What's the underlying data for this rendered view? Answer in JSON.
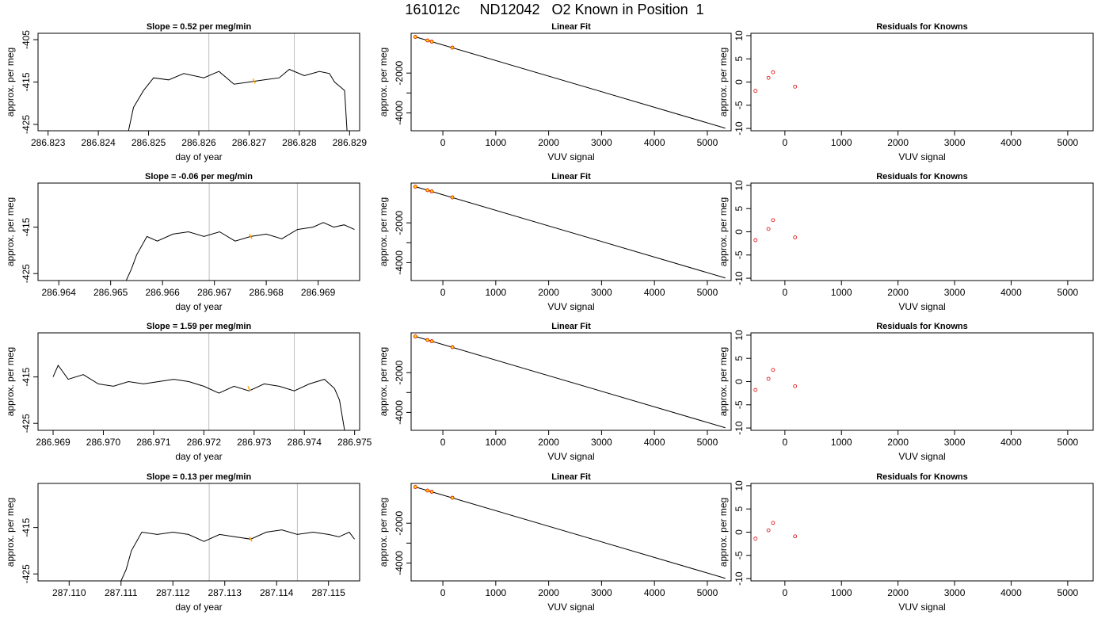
{
  "figure": {
    "title": "161012c     ND12042   O2 Known in Position  1"
  },
  "chart_data": [
    {
      "type": "line",
      "row": 1,
      "panel": "time-series",
      "title": "Slope =  0.52  per meg/min",
      "xlabel": "day of year",
      "ylabel": "approx. per meg",
      "xlim": [
        286.8228,
        286.8292
      ],
      "ylim": [
        -426.5,
        -403.5
      ],
      "xticks": [
        286.823,
        286.824,
        286.825,
        286.826,
        286.827,
        286.828,
        286.829
      ],
      "xtick_labels": [
        "286.823",
        "286.824",
        "286.825",
        "286.826",
        "286.827",
        "286.828",
        "286.829"
      ],
      "yticks": [
        -425,
        -415,
        -405
      ],
      "ytick_labels": [
        "-425",
        "-415",
        "-405"
      ],
      "vlines": [
        286.8262,
        286.8279
      ],
      "highlight": {
        "x": 286.8271,
        "y": -414.8
      },
      "x": [
        286.8246,
        286.8247,
        286.8249,
        286.8251,
        286.8254,
        286.8257,
        286.8261,
        286.8264,
        286.8267,
        286.827,
        286.8273,
        286.8276,
        286.8278,
        286.8281,
        286.8284,
        286.8286,
        286.8287,
        286.8288,
        286.8289,
        286.82895
      ],
      "y": [
        -426.5,
        -421.0,
        -417.0,
        -414.0,
        -414.5,
        -413.0,
        -414.0,
        -412.5,
        -415.5,
        -415.0,
        -414.5,
        -414.0,
        -412.0,
        -413.5,
        -412.5,
        -413.0,
        -415.0,
        -416.0,
        -417.0,
        -426.5
      ]
    },
    {
      "type": "line",
      "row": 1,
      "panel": "linear-fit",
      "title": "Linear Fit",
      "xlabel": "VUV signal",
      "ylabel": "approx. per meg",
      "xlim": [
        -600,
        5450
      ],
      "ylim": [
        -4900,
        0
      ],
      "xticks": [
        0,
        1000,
        2000,
        3000,
        4000,
        5000
      ],
      "xtick_labels": [
        "0",
        "1000",
        "2000",
        "3000",
        "4000",
        "5000"
      ],
      "yticks": [
        -4000,
        -3000,
        -2000
      ],
      "ytick_labels": [
        "-4000",
        "",
        "-2000"
      ],
      "fit_line": {
        "x": [
          -520,
          5340
        ],
        "y": [
          -180,
          -4770
        ]
      },
      "points": {
        "x": [
          -520,
          -290,
          -210,
          180
        ],
        "y": [
          -180,
          -360,
          -420,
          -720
        ]
      }
    },
    {
      "type": "scatter",
      "row": 1,
      "panel": "residuals",
      "title": "Residuals for Knowns",
      "xlabel": "VUV signal",
      "ylabel": "approx. per meg",
      "xlim": [
        -600,
        5450
      ],
      "ylim": [
        -10.5,
        10.5
      ],
      "xticks": [
        0,
        1000,
        2000,
        3000,
        4000,
        5000
      ],
      "xtick_labels": [
        "0",
        "1000",
        "2000",
        "3000",
        "4000",
        "5000"
      ],
      "yticks": [
        -10,
        -5,
        0,
        5,
        10
      ],
      "ytick_labels": [
        "-10",
        "-5",
        "0",
        "5",
        "10"
      ],
      "x": [
        -520,
        -290,
        -210,
        180
      ],
      "y": [
        -1.9,
        0.9,
        2.1,
        -1.0
      ]
    },
    {
      "type": "line",
      "row": 2,
      "panel": "time-series",
      "title": "Slope =  -0.06  per meg/min",
      "xlabel": "day of year",
      "ylabel": "approx. per meg",
      "xlim": [
        286.9636,
        286.9698
      ],
      "ylim": [
        -426.5,
        -405.5
      ],
      "xticks": [
        286.964,
        286.965,
        286.966,
        286.967,
        286.968,
        286.969
      ],
      "xtick_labels": [
        "286.964",
        "286.965",
        "286.966",
        "286.967",
        "286.968",
        "286.969"
      ],
      "yticks": [
        -425,
        -415
      ],
      "ytick_labels": [
        "-425",
        "-415"
      ],
      "vlines": [
        286.9669,
        286.9686
      ],
      "highlight": {
        "x": 286.9677,
        "y": -417.0
      },
      "x": [
        286.9653,
        286.9654,
        286.9655,
        286.9657,
        286.9659,
        286.9662,
        286.9665,
        286.9668,
        286.9671,
        286.9674,
        286.9677,
        286.968,
        286.9683,
        286.9686,
        286.9689,
        286.9691,
        286.9693,
        286.9695,
        286.9697
      ],
      "y": [
        -426.5,
        -424.0,
        -421.0,
        -417.0,
        -418.0,
        -416.5,
        -416.0,
        -417.0,
        -416.0,
        -418.0,
        -417.0,
        -416.5,
        -417.5,
        -415.5,
        -415.0,
        -414.0,
        -415.0,
        -414.5,
        -415.5
      ]
    },
    {
      "type": "line",
      "row": 2,
      "panel": "linear-fit",
      "title": "Linear Fit",
      "xlabel": "VUV signal",
      "ylabel": "approx. per meg",
      "xlim": [
        -600,
        5450
      ],
      "ylim": [
        -4900,
        0
      ],
      "xticks": [
        0,
        1000,
        2000,
        3000,
        4000,
        5000
      ],
      "xtick_labels": [
        "0",
        "1000",
        "2000",
        "3000",
        "4000",
        "5000"
      ],
      "yticks": [
        -4000,
        -3000,
        -2000
      ],
      "ytick_labels": [
        "-4000",
        "",
        "-2000"
      ],
      "fit_line": {
        "x": [
          -520,
          5340
        ],
        "y": [
          -180,
          -4770
        ]
      },
      "points": {
        "x": [
          -520,
          -290,
          -210,
          180
        ],
        "y": [
          -180,
          -360,
          -420,
          -720
        ]
      }
    },
    {
      "type": "scatter",
      "row": 2,
      "panel": "residuals",
      "title": "Residuals for Knowns",
      "xlabel": "VUV signal",
      "ylabel": "approx. per meg",
      "xlim": [
        -600,
        5450
      ],
      "ylim": [
        -10.5,
        10.5
      ],
      "xticks": [
        0,
        1000,
        2000,
        3000,
        4000,
        5000
      ],
      "xtick_labels": [
        "0",
        "1000",
        "2000",
        "3000",
        "4000",
        "5000"
      ],
      "yticks": [
        -10,
        -5,
        0,
        5,
        10
      ],
      "ytick_labels": [
        "-10",
        "-5",
        "0",
        "5",
        "10"
      ],
      "x": [
        -520,
        -290,
        -210,
        180
      ],
      "y": [
        -1.8,
        0.6,
        2.5,
        -1.2
      ]
    },
    {
      "type": "line",
      "row": 3,
      "panel": "time-series",
      "title": "Slope =  1.59  per meg/min",
      "xlabel": "day of year",
      "ylabel": "approx. per meg",
      "xlim": [
        286.9687,
        286.9751
      ],
      "ylim": [
        -426.5,
        -405.5
      ],
      "xticks": [
        286.969,
        286.97,
        286.971,
        286.972,
        286.973,
        286.974,
        286.975
      ],
      "xtick_labels": [
        "286.969",
        "286.970",
        "286.971",
        "286.972",
        "286.973",
        "286.974",
        "286.975"
      ],
      "yticks": [
        -425,
        -415
      ],
      "ytick_labels": [
        "-425",
        "-415"
      ],
      "vlines": [
        286.9721,
        286.9738
      ],
      "highlight": {
        "x": 286.9729,
        "y": -417.5
      },
      "x": [
        286.969,
        286.9691,
        286.9693,
        286.9696,
        286.9699,
        286.9702,
        286.9705,
        286.9708,
        286.9711,
        286.9714,
        286.9717,
        286.972,
        286.9723,
        286.9726,
        286.9729,
        286.9732,
        286.9735,
        286.9738,
        286.9741,
        286.9744,
        286.9746,
        286.9747,
        286.9748
      ],
      "y": [
        -415.0,
        -412.5,
        -415.5,
        -414.5,
        -416.5,
        -417.0,
        -416.0,
        -416.5,
        -416.0,
        -415.5,
        -416.0,
        -417.0,
        -418.5,
        -417.0,
        -418.0,
        -416.5,
        -417.0,
        -418.0,
        -416.5,
        -415.5,
        -417.5,
        -420.0,
        -426.5
      ]
    },
    {
      "type": "line",
      "row": 3,
      "panel": "linear-fit",
      "title": "Linear Fit",
      "xlabel": "VUV signal",
      "ylabel": "approx. per meg",
      "xlim": [
        -600,
        5450
      ],
      "ylim": [
        -4900,
        0
      ],
      "xticks": [
        0,
        1000,
        2000,
        3000,
        4000,
        5000
      ],
      "xtick_labels": [
        "0",
        "1000",
        "2000",
        "3000",
        "4000",
        "5000"
      ],
      "yticks": [
        -4000,
        -3000,
        -2000
      ],
      "ytick_labels": [
        "-4000",
        "",
        "-2000"
      ],
      "fit_line": {
        "x": [
          -520,
          5340
        ],
        "y": [
          -180,
          -4770
        ]
      },
      "points": {
        "x": [
          -520,
          -290,
          -210,
          180
        ],
        "y": [
          -180,
          -360,
          -420,
          -720
        ]
      }
    },
    {
      "type": "scatter",
      "row": 3,
      "panel": "residuals",
      "title": "Residuals for Knowns",
      "xlabel": "VUV signal",
      "ylabel": "approx. per meg",
      "xlim": [
        -600,
        5450
      ],
      "ylim": [
        -10.5,
        10.5
      ],
      "xticks": [
        0,
        1000,
        2000,
        3000,
        4000,
        5000
      ],
      "xtick_labels": [
        "0",
        "1000",
        "2000",
        "3000",
        "4000",
        "5000"
      ],
      "yticks": [
        -10,
        -5,
        0,
        5,
        10
      ],
      "ytick_labels": [
        "-10",
        "-5",
        "0",
        "5",
        "10"
      ],
      "x": [
        -520,
        -290,
        -210,
        180
      ],
      "y": [
        -1.8,
        0.6,
        2.5,
        -1.0
      ]
    },
    {
      "type": "line",
      "row": 4,
      "panel": "time-series",
      "title": "Slope =  0.13  per meg/min",
      "xlabel": "day of year",
      "ylabel": "approx. per meg",
      "xlim": [
        287.1094,
        287.1156
      ],
      "ylim": [
        -426.5,
        -405.5
      ],
      "xticks": [
        287.11,
        287.111,
        287.112,
        287.113,
        287.114,
        287.115
      ],
      "xtick_labels": [
        "287.110",
        "287.111",
        "287.112",
        "287.113",
        "287.114",
        "287.115"
      ],
      "yticks": [
        -425,
        -415
      ],
      "ytick_labels": [
        "-425",
        "-415"
      ],
      "vlines": [
        287.1127,
        287.1144
      ],
      "highlight": {
        "x": 287.1135,
        "y": -417.5
      },
      "x": [
        287.111,
        287.1111,
        287.1112,
        287.1114,
        287.1117,
        287.112,
        287.1123,
        287.1126,
        287.1129,
        287.1132,
        287.1135,
        287.1138,
        287.1141,
        287.1144,
        287.1147,
        287.115,
        287.1152,
        287.1154,
        287.1155
      ],
      "y": [
        -426.5,
        -424.0,
        -420.0,
        -416.0,
        -416.5,
        -416.0,
        -416.5,
        -418.0,
        -416.5,
        -417.0,
        -417.5,
        -416.0,
        -415.5,
        -416.5,
        -416.0,
        -416.5,
        -417.0,
        -416.0,
        -417.5
      ]
    },
    {
      "type": "line",
      "row": 4,
      "panel": "linear-fit",
      "title": "Linear Fit",
      "xlabel": "VUV signal",
      "ylabel": "approx. per meg",
      "xlim": [
        -600,
        5450
      ],
      "ylim": [
        -4900,
        0
      ],
      "xticks": [
        0,
        1000,
        2000,
        3000,
        4000,
        5000
      ],
      "xtick_labels": [
        "0",
        "1000",
        "2000",
        "3000",
        "4000",
        "5000"
      ],
      "yticks": [
        -4000,
        -3000,
        -2000
      ],
      "ytick_labels": [
        "-4000",
        "",
        "-2000"
      ],
      "fit_line": {
        "x": [
          -520,
          5340
        ],
        "y": [
          -180,
          -4770
        ]
      },
      "points": {
        "x": [
          -520,
          -290,
          -210,
          180
        ],
        "y": [
          -180,
          -360,
          -420,
          -720
        ]
      }
    },
    {
      "type": "scatter",
      "row": 4,
      "panel": "residuals",
      "title": "Residuals for Knowns",
      "xlabel": "VUV signal",
      "ylabel": "approx. per meg",
      "xlim": [
        -600,
        5450
      ],
      "ylim": [
        -10.5,
        10.5
      ],
      "xticks": [
        0,
        1000,
        2000,
        3000,
        4000,
        5000
      ],
      "xtick_labels": [
        "0",
        "1000",
        "2000",
        "3000",
        "4000",
        "5000"
      ],
      "yticks": [
        -10,
        -5,
        0,
        5,
        10
      ],
      "ytick_labels": [
        "-10",
        "-5",
        "0",
        "5",
        "10"
      ],
      "x": [
        -520,
        -290,
        -210,
        180
      ],
      "y": [
        -1.4,
        0.4,
        2.0,
        -0.9
      ]
    }
  ],
  "colors": {
    "line": "#000000",
    "vline": "#bebebe",
    "highlight": "#ffa500",
    "point_stroke": "#dd0000",
    "point_fill": "#ffd700"
  }
}
